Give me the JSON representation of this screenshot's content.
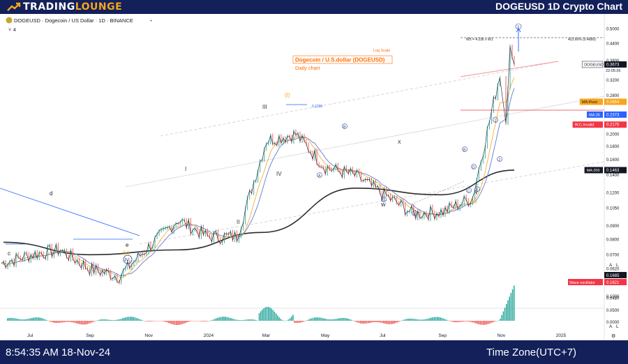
{
  "brand": {
    "name_a": "TRADING",
    "name_b": "LOUNGE"
  },
  "header": {
    "title": "DOGEUSD 1D Crypto Chart"
  },
  "footer": {
    "timestamp": "8:54:35 AM 18-Nov-24",
    "timezone": "Time Zone(UTC+7)"
  },
  "chart_data": {
    "type": "line",
    "symbol_line": "DOGEUSD · Dogecoin / US Dollar · 1D · BINANCE",
    "indicator_count": "4",
    "scale_note": "Log Scale",
    "title": "Dogecoin / U.S.dollar (DOGEUSD)",
    "subtitle": "Daily chart",
    "y_scale": "log",
    "ylim": [
      0.045,
      0.55
    ],
    "y_ticks": [
      "0.5000",
      "0.4400",
      "0.3800",
      "0.3200",
      "0.2800",
      "0.2400",
      "0.2000",
      "0.1800",
      "0.1600",
      "0.1400",
      "0.1200",
      "0.1050",
      "0.0900",
      "0.0800",
      "0.0700",
      "0.0620",
      "0.0550",
      "0.0480"
    ],
    "x_ticks": [
      "Jul",
      "Sep",
      "Nov",
      "2024",
      "Mar",
      "May",
      "Jul",
      "Sep",
      "Nov",
      "2025"
    ],
    "price_labels": [
      {
        "label": "DOGEUSD",
        "value": "0.3673",
        "sub": "22:05:26",
        "color": "#131722"
      },
      {
        "label": "MA:Pivot",
        "value": "0.2654",
        "color": "#f7a51c"
      },
      {
        "label": "MA:35",
        "value": "0.2373",
        "color": "#2962ff"
      },
      {
        "label": "W.C.Invalid",
        "value": "0.2175",
        "color": "#f23645"
      },
      {
        "label": "MA:200",
        "value": "0.1463",
        "color": "#131722"
      }
    ],
    "target_label": "W5 = 4.236 x W1",
    "target_value": "423.60% (0.4689)",
    "level_label": "0.2290",
    "wave_labels": [
      "c",
      "d",
      "e",
      "(v)",
      "IV",
      "I",
      "II",
      "III",
      "IV",
      "(I)",
      "A",
      "B",
      "C",
      "W",
      "X",
      "Y",
      "A",
      "B",
      "C",
      "D",
      "E",
      "(II)",
      "1",
      "2",
      "3"
    ],
    "oscillator": {
      "name": "Wave oscillator",
      "value_a": "0.1685",
      "value_b": "0.1621",
      "ticks": [
        "0.1000",
        "0.0500",
        "0.0000"
      ]
    },
    "series": [
      {
        "name": "DOGEUSD",
        "x": [
          "Jun 2023",
          "Jul 2023",
          "Aug 2023",
          "Sep 2023",
          "Oct 2023",
          "Nov 2023",
          "Dec 2023",
          "Jan 2024",
          "Feb 2024",
          "Mar 2024",
          "Apr 2024",
          "May 2024",
          "Jun 2024",
          "Jul 2024",
          "Aug 2024",
          "Sep 2024",
          "Oct 2024",
          "Nov 2024"
        ],
        "values": [
          0.065,
          0.07,
          0.073,
          0.062,
          0.058,
          0.075,
          0.095,
          0.082,
          0.082,
          0.19,
          0.2,
          0.15,
          0.14,
          0.118,
          0.1,
          0.102,
          0.115,
          0.3673
        ]
      },
      {
        "name": "MA:200",
        "x": [
          "Jun 2023",
          "Sep 2023",
          "Dec 2023",
          "Mar 2024",
          "Jun 2024",
          "Sep 2024",
          "Nov 2024"
        ],
        "values": [
          0.078,
          0.07,
          0.073,
          0.085,
          0.125,
          0.118,
          0.1463
        ]
      }
    ]
  }
}
